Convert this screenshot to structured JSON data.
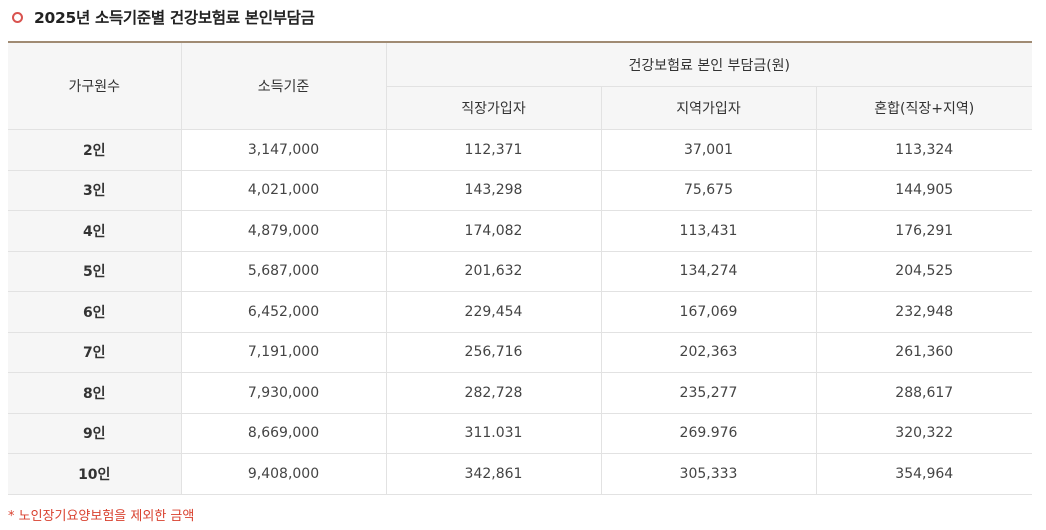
{
  "title": "2025년 소득기준별 건강보험료 본인부담금",
  "colors": {
    "accent_icon": "#d9534f",
    "table_top_border": "#a08b73",
    "header_bg": "#f6f6f6",
    "footnote": "#d9412f"
  },
  "table": {
    "headers": {
      "household": "가구원수",
      "income": "소득기준",
      "group": "건강보험료 본인 부담금(원)",
      "sub": [
        "직장가입자",
        "지역가입자",
        "혼합(직장+지역)"
      ]
    },
    "rows": [
      [
        "2인",
        "3,147,000",
        "112,371",
        "37,001",
        "113,324"
      ],
      [
        "3인",
        "4,021,000",
        "143,298",
        "75,675",
        "144,905"
      ],
      [
        "4인",
        "4,879,000",
        "174,082",
        "113,431",
        "176,291"
      ],
      [
        "5인",
        "5,687,000",
        "201,632",
        "134,274",
        "204,525"
      ],
      [
        "6인",
        "6,452,000",
        "229,454",
        "167,069",
        "232,948"
      ],
      [
        "7인",
        "7,191,000",
        "256,716",
        "202,363",
        "261,360"
      ],
      [
        "8인",
        "7,930,000",
        "282,728",
        "235,277",
        "288,617"
      ],
      [
        "9인",
        "8,669,000",
        "311.031",
        "269.976",
        "320,322"
      ],
      [
        "10인",
        "9,408,000",
        "342,861",
        "305,333",
        "354,964"
      ]
    ]
  },
  "footnote": "* 노인장기요양보험을 제외한 금액"
}
